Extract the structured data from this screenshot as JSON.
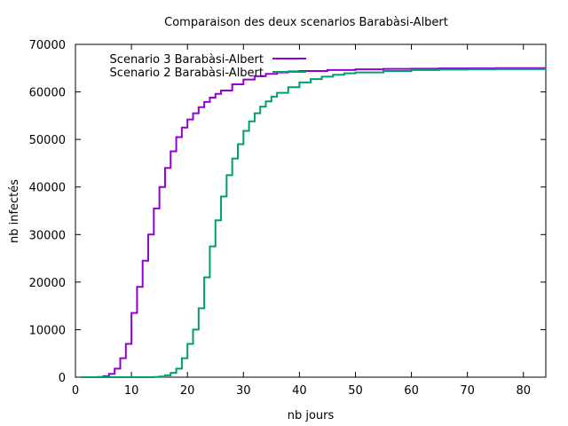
{
  "chart_data": {
    "type": "line",
    "title": "Comparaison des deux scenarios Barabàsi-Albert",
    "xlabel": "nb jours",
    "ylabel": "nb infectés",
    "xlim": [
      0,
      84
    ],
    "ylim": [
      0,
      70000
    ],
    "xticks": [
      0,
      10,
      20,
      30,
      40,
      50,
      60,
      70,
      80
    ],
    "yticks": [
      0,
      10000,
      20000,
      30000,
      40000,
      50000,
      60000,
      70000
    ],
    "legend_position": "top-left",
    "grid": false,
    "series": [
      {
        "name": "Scenario 3 Barabàsi-Albert",
        "color": "#9400d3",
        "x": [
          1,
          3,
          4,
          5,
          6,
          7,
          8,
          9,
          10,
          11,
          12,
          13,
          14,
          15,
          16,
          17,
          18,
          19,
          20,
          21,
          22,
          23,
          24,
          25,
          26,
          28,
          30,
          32,
          34,
          36,
          38,
          40,
          45,
          50,
          55,
          60,
          65,
          70,
          75,
          80,
          84
        ],
        "y": [
          0,
          0,
          50,
          200,
          700,
          1800,
          4000,
          7000,
          13500,
          19000,
          24500,
          30000,
          35500,
          40000,
          44000,
          47500,
          50500,
          52500,
          54200,
          55500,
          56800,
          57900,
          58800,
          59600,
          60300,
          61600,
          62600,
          63300,
          63800,
          64100,
          64300,
          64400,
          64600,
          64750,
          64850,
          64900,
          64950,
          64950,
          65000,
          65000,
          65000
        ]
      },
      {
        "name": "Scenario 2 Barabàsi-Albert",
        "color": "#009e73",
        "x": [
          1,
          10,
          14,
          15,
          16,
          17,
          18,
          19,
          20,
          21,
          22,
          23,
          24,
          25,
          26,
          27,
          28,
          29,
          30,
          31,
          32,
          33,
          34,
          35,
          36,
          38,
          40,
          42,
          44,
          46,
          48,
          50,
          55,
          60,
          65,
          70,
          75,
          80,
          84
        ],
        "y": [
          0,
          0,
          50,
          150,
          400,
          900,
          1800,
          4000,
          7000,
          10000,
          14500,
          21000,
          27500,
          33000,
          38000,
          42500,
          46000,
          49000,
          51800,
          53800,
          55500,
          56900,
          58000,
          59000,
          59800,
          61000,
          62000,
          62700,
          63200,
          63600,
          63900,
          64100,
          64400,
          64600,
          64700,
          64750,
          64800,
          64800,
          64800
        ]
      }
    ]
  }
}
